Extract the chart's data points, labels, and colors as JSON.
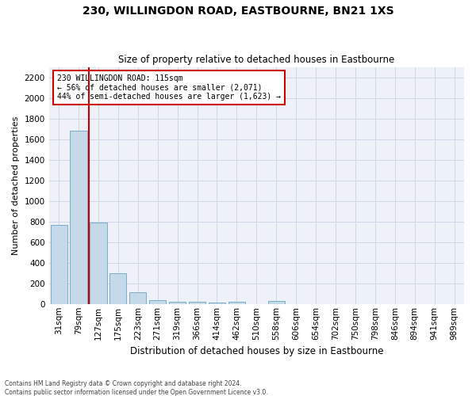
{
  "title": "230, WILLINGDON ROAD, EASTBOURNE, BN21 1XS",
  "subtitle": "Size of property relative to detached houses in Eastbourne",
  "xlabel": "Distribution of detached houses by size in Eastbourne",
  "ylabel": "Number of detached properties",
  "footnote1": "Contains HM Land Registry data © Crown copyright and database right 2024.",
  "footnote2": "Contains public sector information licensed under the Open Government Licence v3.0.",
  "annotation_line1": "230 WILLINGDON ROAD: 115sqm",
  "annotation_line2": "← 56% of detached houses are smaller (2,071)",
  "annotation_line3": "44% of semi-detached houses are larger (1,623) →",
  "bar_color": "#c6d9e8",
  "bar_edge_color": "#7aaec8",
  "red_line_color": "#cc0000",
  "grid_color": "#d0d8e8",
  "bg_color": "#eef2f8",
  "categories": [
    "31sqm",
    "79sqm",
    "127sqm",
    "175sqm",
    "223sqm",
    "271sqm",
    "319sqm",
    "366sqm",
    "414sqm",
    "462sqm",
    "510sqm",
    "558sqm",
    "606sqm",
    "654sqm",
    "702sqm",
    "750sqm",
    "798sqm",
    "846sqm",
    "894sqm",
    "941sqm",
    "989sqm"
  ],
  "values": [
    770,
    1680,
    790,
    295,
    115,
    38,
    25,
    18,
    15,
    20,
    0,
    28,
    0,
    0,
    0,
    0,
    0,
    0,
    0,
    0,
    0
  ],
  "red_line_x": 1.5,
  "ylim": [
    0,
    2300
  ],
  "yticks": [
    0,
    200,
    400,
    600,
    800,
    1000,
    1200,
    1400,
    1600,
    1800,
    2000,
    2200
  ],
  "title_fontsize": 10,
  "subtitle_fontsize": 8.5,
  "ylabel_fontsize": 8,
  "xlabel_fontsize": 8.5,
  "tick_fontsize": 7.5,
  "annotation_fontsize": 7,
  "footnote_fontsize": 5.5
}
